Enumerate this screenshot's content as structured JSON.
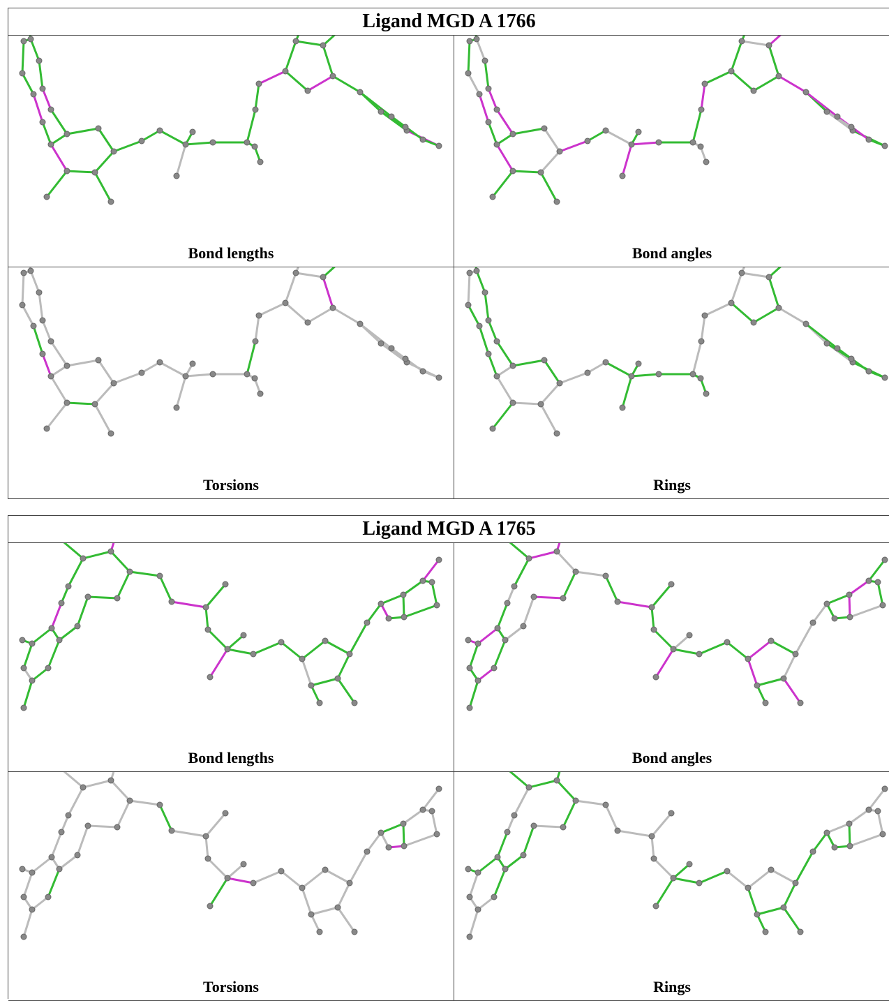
{
  "figures": [
    {
      "title": "Ligand MGD A 1766",
      "captions": [
        "Bond lengths",
        "Bond angles",
        "Torsions",
        "Rings"
      ]
    },
    {
      "title": "Ligand MGD A 1765",
      "captions": [
        "Bond lengths",
        "Bond angles",
        "Torsions",
        "Rings"
      ]
    }
  ]
}
